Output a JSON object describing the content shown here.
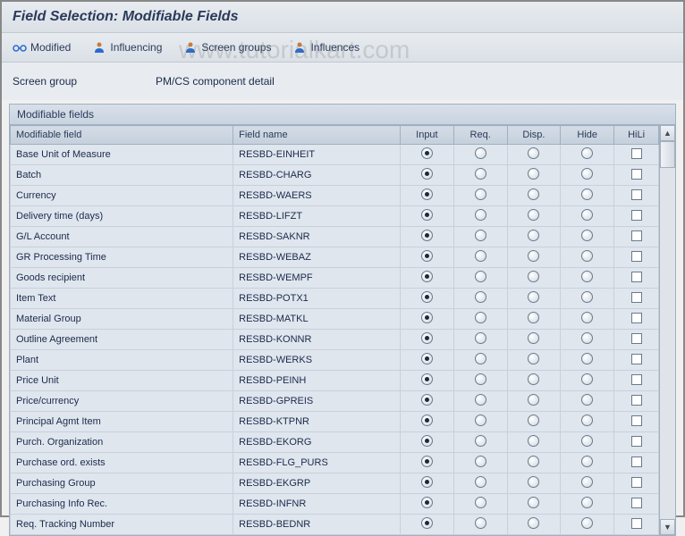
{
  "title": "Field Selection: Modifiable Fields",
  "toolbar": {
    "modified": "Modified",
    "influencing": "Influencing",
    "screen_groups": "Screen groups",
    "influences": "Influences"
  },
  "info": {
    "label": "Screen group",
    "value": "PM/CS component detail"
  },
  "table": {
    "title": "Modifiable fields",
    "headers": {
      "field": "Modifiable field",
      "name": "Field name",
      "input": "Input",
      "req": "Req.",
      "disp": "Disp.",
      "hide": "Hide",
      "hili": "HiLi"
    },
    "rows": [
      {
        "field": "Base Unit of Measure",
        "name": "RESBD-EINHEIT",
        "sel": 0
      },
      {
        "field": "Batch",
        "name": "RESBD-CHARG",
        "sel": 0
      },
      {
        "field": "Currency",
        "name": "RESBD-WAERS",
        "sel": 0
      },
      {
        "field": "Delivery time (days)",
        "name": "RESBD-LIFZT",
        "sel": 0
      },
      {
        "field": "G/L Account",
        "name": "RESBD-SAKNR",
        "sel": 0
      },
      {
        "field": "GR Processing Time",
        "name": "RESBD-WEBAZ",
        "sel": 0
      },
      {
        "field": "Goods recipient",
        "name": "RESBD-WEMPF",
        "sel": 0
      },
      {
        "field": "Item Text",
        "name": "RESBD-POTX1",
        "sel": 0
      },
      {
        "field": "Material Group",
        "name": "RESBD-MATKL",
        "sel": 0
      },
      {
        "field": "Outline Agreement",
        "name": "RESBD-KONNR",
        "sel": 0
      },
      {
        "field": "Plant",
        "name": "RESBD-WERKS",
        "sel": 0
      },
      {
        "field": "Price Unit",
        "name": "RESBD-PEINH",
        "sel": 0
      },
      {
        "field": "Price/currency",
        "name": "RESBD-GPREIS",
        "sel": 0
      },
      {
        "field": "Principal Agmt Item",
        "name": "RESBD-KTPNR",
        "sel": 0
      },
      {
        "field": "Purch. Organization",
        "name": "RESBD-EKORG",
        "sel": 0
      },
      {
        "field": "Purchase ord. exists",
        "name": "RESBD-FLG_PURS",
        "sel": 0
      },
      {
        "field": "Purchasing Group",
        "name": "RESBD-EKGRP",
        "sel": 0
      },
      {
        "field": "Purchasing Info Rec.",
        "name": "RESBD-INFNR",
        "sel": 0
      },
      {
        "field": "Req. Tracking Number",
        "name": "RESBD-BEDNR",
        "sel": 0
      }
    ]
  },
  "styling": {
    "title_font_size": 16,
    "body_font_size": 12,
    "table_font_size": 11,
    "header_bg_gradient": [
      "#d4dce6",
      "#c4d0dc"
    ],
    "row_bg": "#dfe6ee",
    "border_color": "#a0b0c0",
    "text_color": "#2a3a5a",
    "toolbar_bg_gradient": [
      "#e8ecf0",
      "#dae0e6"
    ],
    "icon_colors": {
      "modified_glasses": "#2a6acf",
      "person_head": "#c77b3a",
      "person_body": "#2a6acf"
    }
  },
  "watermark": "www.tutorialkart.com"
}
